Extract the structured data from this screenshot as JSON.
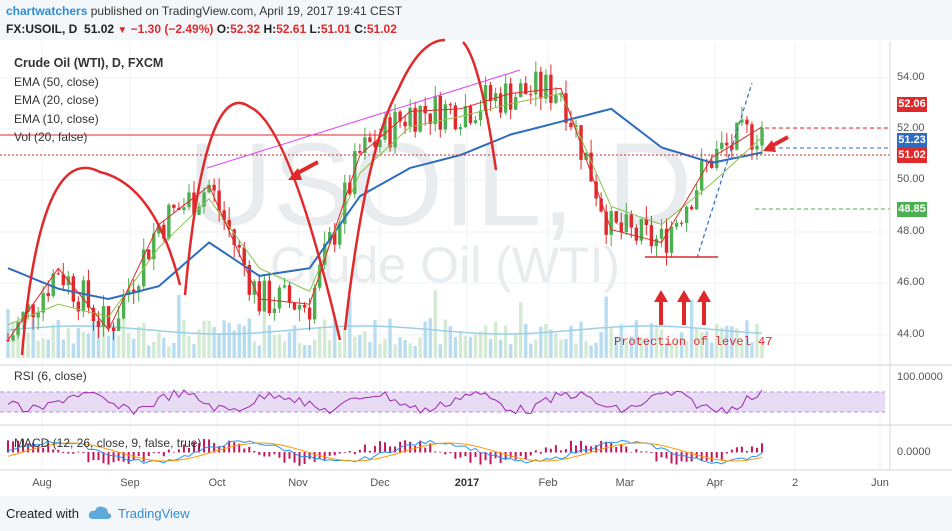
{
  "header": {
    "user": "chartwatchers",
    "published": "published on TradingView.com, April 19, 2017 19:41 CEST",
    "symbol": "FX:USOIL, D",
    "last": "51.02",
    "change": "−1.30 (−2.49%)",
    "o_label": "O:",
    "o_val": "52.32",
    "h_label": "H:",
    "h_val": "52.61",
    "l_label": "L:",
    "l_val": "51.01",
    "c_label": "C:",
    "c_val": "51.02"
  },
  "legend": {
    "title": "Crude Oil (WTI), D, FXCM",
    "ema50": "EMA (50, close)",
    "ema20": "EMA (20, close)",
    "ema10": "EMA (10, close)",
    "vol": "Vol (20, false)"
  },
  "watermark": {
    "big": "USOIL, D",
    "small": "Crude Oil (WTI)"
  },
  "annotation": {
    "text": "Protection of level 47"
  },
  "price_axis": [
    "54.00",
    "52.00",
    "50.00",
    "48.00",
    "46.00",
    "44.00"
  ],
  "price_tags": [
    {
      "text": "52.06",
      "color": "#e0292b"
    },
    {
      "text": "51.23",
      "color": "#2e6cbf"
    },
    {
      "text": "51.02",
      "color": "#e0292b"
    },
    {
      "text": "48.85",
      "color": "#4caf50"
    }
  ],
  "time_axis": [
    {
      "text": "Aug",
      "bold": false
    },
    {
      "text": "Sep",
      "bold": false
    },
    {
      "text": "Oct",
      "bold": false
    },
    {
      "text": "Nov",
      "bold": false
    },
    {
      "text": "Dec",
      "bold": false
    },
    {
      "text": "2017",
      "bold": true
    },
    {
      "text": "Feb",
      "bold": false
    },
    {
      "text": "Mar",
      "bold": false
    },
    {
      "text": "Apr",
      "bold": false
    },
    {
      "text": "2",
      "bold": false
    },
    {
      "text": "Jun",
      "bold": false
    }
  ],
  "rsi": {
    "label": "RSI (6, close)",
    "axis": "100.0000"
  },
  "macd": {
    "label": "MACD (12, 26, close, 9, false, true)",
    "axis": "0.0000"
  },
  "footer": {
    "created": "Created with",
    "brand": "TradingView"
  },
  "colors": {
    "up": "#4caf50",
    "down": "#e0292b",
    "ema50": "#2e6cbf",
    "ema20": "#8bc34a",
    "ema10": "#e0292b",
    "volume": "#a8d4ec"
  },
  "chart_data": {
    "type": "candlestick",
    "title": "Crude Oil (WTI), D, FXCM",
    "ylim": [
      43,
      55
    ],
    "y_ticks": [
      44,
      46,
      48,
      50,
      52,
      54
    ],
    "x_ticks": [
      "Aug",
      "Sep",
      "Oct",
      "Nov",
      "Dec",
      "2017",
      "Feb",
      "Mar",
      "Apr",
      "2",
      "Jun"
    ],
    "series": [
      {
        "name": "EMA (50, close)",
        "values": [
          46.6,
          45.8,
          45.4,
          45.9,
          47.6,
          46.3,
          46.6,
          49.4,
          50.5,
          51.0,
          51.8,
          52.3,
          52.8,
          51.3,
          50.7,
          51.1
        ]
      },
      {
        "name": "EMA (20, close)",
        "values": [
          44.4,
          45.2,
          44.7,
          47.4,
          49.3,
          46.6,
          45.7,
          50.3,
          52.1,
          52.5,
          53.0,
          53.4,
          49.0,
          48.3,
          49.9,
          51.7
        ]
      },
      {
        "name": "EMA (10, close)",
        "values": [
          43.8,
          46.6,
          44.2,
          48.3,
          49.8,
          45.4,
          45.2,
          51.0,
          52.7,
          52.8,
          53.4,
          53.6,
          48.1,
          47.6,
          50.9,
          52.1
        ]
      }
    ],
    "levels": [
      {
        "value": 52.06
      },
      {
        "value": 51.23
      },
      {
        "value": 51.02
      },
      {
        "value": 48.85
      },
      {
        "value": 47.0
      }
    ],
    "ohlc_last": {
      "open": 52.32,
      "high": 52.61,
      "low": 51.01,
      "close": 51.02
    }
  }
}
